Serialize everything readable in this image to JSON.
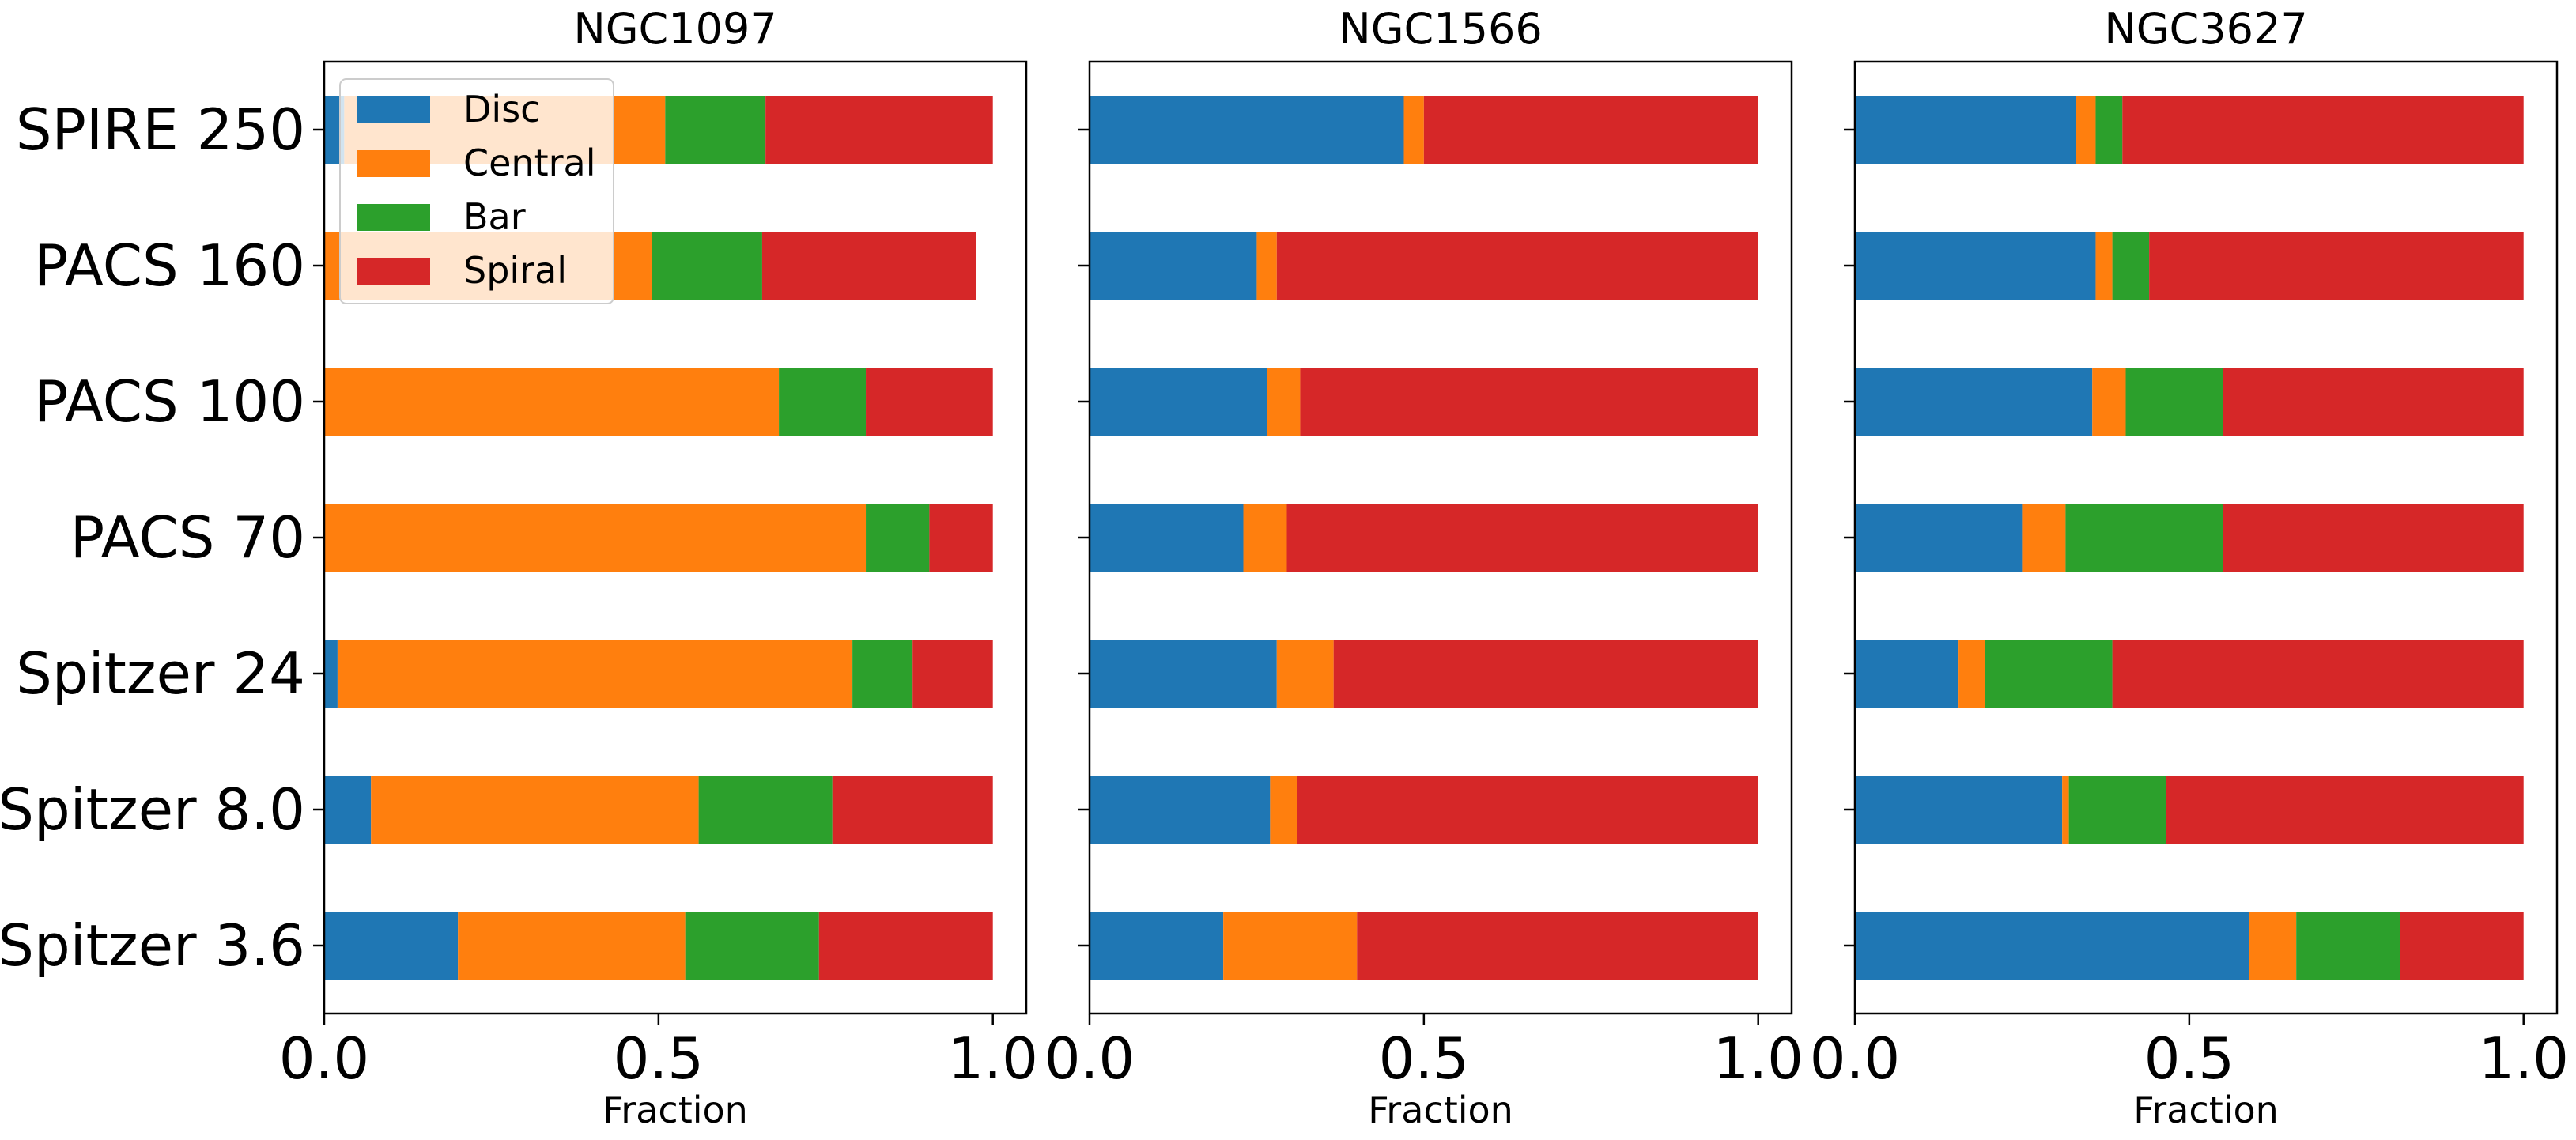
{
  "chart_data": {
    "type": "bar",
    "orientation": "horizontal",
    "stacked": true,
    "categories": [
      "Spitzer 3.6",
      "Spitzer 8.0",
      "Spitzer 24",
      "PACS 70",
      "PACS 100",
      "PACS 160",
      "SPIRE 250"
    ],
    "xlim": [
      0.0,
      1.05
    ],
    "xticks": [
      "0.0",
      "0.5",
      "1.0"
    ],
    "xlabel": "Fraction",
    "series_names": [
      "Disc",
      "Central",
      "Bar",
      "Spiral"
    ],
    "colors": {
      "Disc": "#1f77b4",
      "Central": "#ff7f0e",
      "Bar": "#2ca02c",
      "Spiral": "#d62728"
    },
    "legend": {
      "location": "upper-left",
      "panel": "NGC1097"
    },
    "panels": [
      {
        "title": "NGC1097",
        "series": [
          {
            "name": "Disc",
            "values": [
              0.2,
              0.07,
              0.02,
              0.0,
              0.0,
              0.0,
              0.03
            ]
          },
          {
            "name": "Central",
            "values": [
              0.34,
              0.49,
              0.77,
              0.81,
              0.68,
              0.49,
              0.48
            ]
          },
          {
            "name": "Bar",
            "values": [
              0.2,
              0.2,
              0.09,
              0.095,
              0.13,
              0.165,
              0.15
            ]
          },
          {
            "name": "Spiral",
            "values": [
              0.26,
              0.24,
              0.12,
              0.095,
              0.19,
              0.32,
              0.34
            ]
          }
        ]
      },
      {
        "title": "NGC1566",
        "series": [
          {
            "name": "Disc",
            "values": [
              0.2,
              0.27,
              0.28,
              0.23,
              0.265,
              0.25,
              0.47
            ]
          },
          {
            "name": "Central",
            "values": [
              0.2,
              0.04,
              0.085,
              0.065,
              0.05,
              0.03,
              0.03
            ]
          },
          {
            "name": "Bar",
            "values": [
              0.0,
              0.0,
              0.0,
              0.0,
              0.0,
              0.0,
              0.0
            ]
          },
          {
            "name": "Spiral",
            "values": [
              0.6,
              0.69,
              0.635,
              0.705,
              0.685,
              0.72,
              0.5
            ]
          }
        ]
      },
      {
        "title": "NGC3627",
        "series": [
          {
            "name": "Disc",
            "values": [
              0.59,
              0.31,
              0.155,
              0.25,
              0.355,
              0.36,
              0.33
            ]
          },
          {
            "name": "Central",
            "values": [
              0.07,
              0.01,
              0.04,
              0.065,
              0.05,
              0.025,
              0.03
            ]
          },
          {
            "name": "Bar",
            "values": [
              0.155,
              0.145,
              0.19,
              0.235,
              0.145,
              0.055,
              0.04
            ]
          },
          {
            "name": "Spiral",
            "values": [
              0.185,
              0.535,
              0.615,
              0.45,
              0.45,
              0.56,
              0.6
            ]
          }
        ]
      }
    ]
  }
}
